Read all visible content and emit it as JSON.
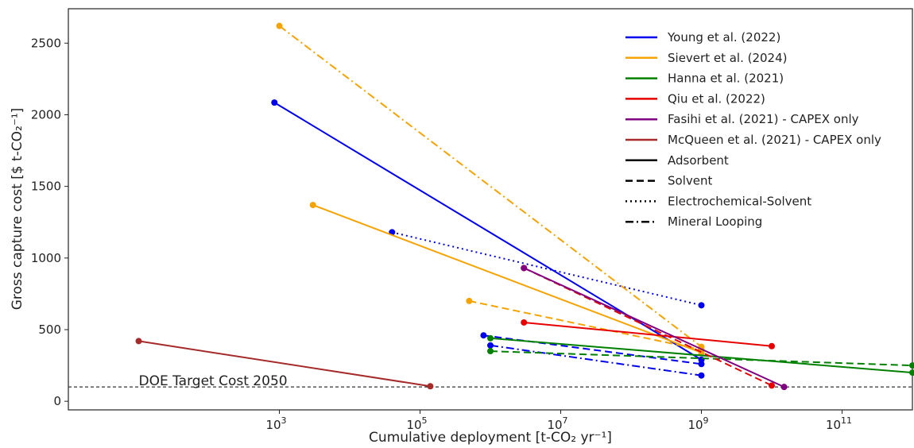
{
  "chart_data": {
    "type": "line",
    "xlabel": "Cumulative deployment [t-CO₂ yr⁻¹]",
    "ylabel": "Gross capture cost [$ t-CO₂⁻¹]",
    "x_scale": "log",
    "xlim": [
      1.0,
      1000000000000.0
    ],
    "ylim": [
      -60,
      2740
    ],
    "x_ticks": [
      {
        "value": 1000,
        "base": "10",
        "exp": "3"
      },
      {
        "value": 100000,
        "base": "10",
        "exp": "5"
      },
      {
        "value": 10000000,
        "base": "10",
        "exp": "7"
      },
      {
        "value": 1000000000,
        "base": "10",
        "exp": "9"
      },
      {
        "value": 100000000000,
        "base": "10",
        "exp": "11"
      }
    ],
    "y_ticks": [
      0,
      500,
      1000,
      1500,
      2000,
      2500
    ],
    "grid": false,
    "reference_line": {
      "y": 100,
      "label": "DOE Target Cost 2050",
      "label_x": 10,
      "color": "#333333"
    },
    "legend": {
      "position": "top-right",
      "studies": [
        {
          "name": "Young et al. (2022)",
          "color": "#0000ee"
        },
        {
          "name": "Sievert et al. (2024)",
          "color": "#f5a300"
        },
        {
          "name": "Hanna et al. (2021)",
          "color": "#008000"
        },
        {
          "name": "Qiu et al. (2022)",
          "color": "#e60000"
        },
        {
          "name": "Fasihi et al. (2021) - CAPEX only",
          "color": "#800080"
        },
        {
          "name": "McQueen et al. (2021) - CAPEX only",
          "color": "#a52a2a"
        }
      ],
      "styles": [
        {
          "name": "Adsorbent",
          "dash": "solid"
        },
        {
          "name": "Solvent",
          "dash": "dashed"
        },
        {
          "name": "Electrochemical-Solvent",
          "dash": "dotted"
        },
        {
          "name": "Mineral Looping",
          "dash": "dashdot"
        }
      ]
    },
    "series": [
      {
        "study": "Young et al. (2022)",
        "style": "Adsorbent",
        "color": "#0000ee",
        "points": [
          [
            850,
            2085
          ],
          [
            1000000000,
            290
          ]
        ]
      },
      {
        "study": "Young et al. (2022)",
        "style": "Solvent",
        "color": "#0000ee",
        "points": [
          [
            800000,
            460
          ],
          [
            1000000000,
            260
          ]
        ]
      },
      {
        "study": "Young et al. (2022)",
        "style": "Electrochemical-Solvent",
        "color": "#0000ee",
        "points": [
          [
            40000,
            1180
          ],
          [
            1000000000,
            670
          ]
        ]
      },
      {
        "study": "Young et al. (2022)",
        "style": "Mineral Looping",
        "color": "#0000ee",
        "points": [
          [
            1000000,
            390
          ],
          [
            1000000000,
            180
          ]
        ]
      },
      {
        "study": "Sievert et al. (2024)",
        "style": "Mineral Looping",
        "color": "#f5a300",
        "points": [
          [
            1000,
            2620
          ],
          [
            1000000000,
            380
          ]
        ]
      },
      {
        "study": "Sievert et al. (2024)",
        "style": "Adsorbent",
        "color": "#f5a300",
        "points": [
          [
            3000,
            1370
          ],
          [
            1000000000,
            340
          ]
        ]
      },
      {
        "study": "Sievert et al. (2024)",
        "style": "Solvent",
        "color": "#f5a300",
        "points": [
          [
            500000,
            700
          ],
          [
            1000000000,
            360
          ]
        ]
      },
      {
        "study": "Hanna et al. (2021)",
        "style": "Adsorbent",
        "color": "#008000",
        "points": [
          [
            1000000,
            440
          ],
          [
            1000000000000,
            200
          ]
        ]
      },
      {
        "study": "Hanna et al. (2021)",
        "style": "Solvent",
        "color": "#008000",
        "points": [
          [
            1000000,
            350
          ],
          [
            1000000000000,
            250
          ]
        ]
      },
      {
        "study": "Qiu et al. (2022)",
        "style": "Adsorbent",
        "color": "#e60000",
        "points": [
          [
            3000000,
            550
          ],
          [
            10000000000,
            385
          ]
        ]
      },
      {
        "study": "Qiu et al. (2022)",
        "style": "Solvent",
        "color": "#e60000",
        "points": [
          [
            3000000,
            930
          ],
          [
            10000000000,
            110
          ]
        ]
      },
      {
        "study": "Fasihi et al. (2021) - CAPEX only",
        "style": "Adsorbent",
        "color": "#800080",
        "points": [
          [
            3000000,
            930
          ],
          [
            15000000000,
            100
          ]
        ]
      },
      {
        "study": "McQueen et al. (2021) - CAPEX only",
        "style": "Adsorbent",
        "color": "#a52a2a",
        "points": [
          [
            10,
            420
          ],
          [
            140000,
            105
          ]
        ]
      }
    ]
  }
}
